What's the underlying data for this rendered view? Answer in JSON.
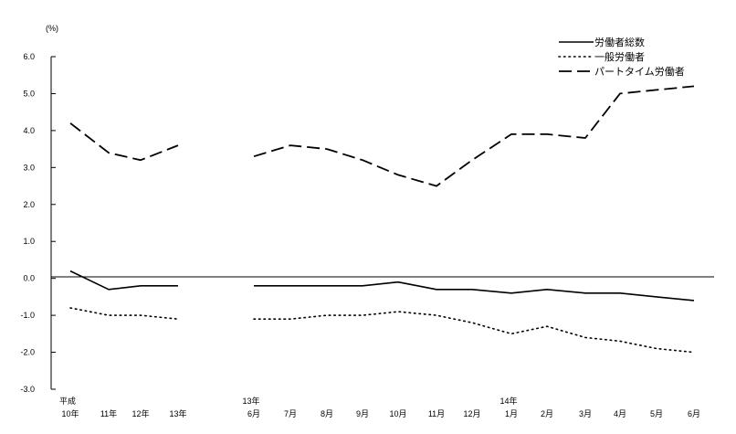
{
  "chart_data": {
    "type": "line",
    "unit_label": "(%)",
    "ylim": [
      -3.0,
      6.0
    ],
    "ytick_labels": [
      "6.0",
      "5.0",
      "4.0",
      "3.0",
      "2.0",
      "1.0",
      "0.0",
      "-1.0",
      "-2.0",
      "-3.0"
    ],
    "legend_position": "top-right",
    "grid": false,
    "categories": [
      {
        "top": "平成",
        "bottom": "10年"
      },
      {
        "top": "",
        "bottom": "11年"
      },
      {
        "top": "",
        "bottom": "12年"
      },
      {
        "top": "",
        "bottom": "13年"
      },
      {
        "top": "13年",
        "bottom": "6月"
      },
      {
        "top": "",
        "bottom": "7月"
      },
      {
        "top": "",
        "bottom": "8月"
      },
      {
        "top": "",
        "bottom": "9月"
      },
      {
        "top": "",
        "bottom": "10月"
      },
      {
        "top": "",
        "bottom": "11月"
      },
      {
        "top": "",
        "bottom": "12月"
      },
      {
        "top": "14年",
        "bottom": "1月"
      },
      {
        "top": "",
        "bottom": "2月"
      },
      {
        "top": "",
        "bottom": "3月"
      },
      {
        "top": "",
        "bottom": "4月"
      },
      {
        "top": "",
        "bottom": "5月"
      },
      {
        "top": "",
        "bottom": "6月"
      }
    ],
    "series": [
      {
        "name": "労働者総数",
        "style": "solid",
        "values": [
          0.2,
          -0.3,
          -0.2,
          -0.2,
          -0.2,
          -0.2,
          -0.2,
          -0.2,
          -0.1,
          -0.3,
          -0.3,
          -0.4,
          -0.3,
          -0.4,
          -0.4,
          -0.5,
          -0.6
        ]
      },
      {
        "name": "一般労働者",
        "style": "dotted",
        "values": [
          -0.8,
          -1.0,
          -1.0,
          -1.1,
          -1.1,
          -1.1,
          -1.0,
          -1.0,
          -0.9,
          -1.0,
          -1.2,
          -1.5,
          -1.3,
          -1.6,
          -1.7,
          -1.9,
          -2.0
        ]
      },
      {
        "name": "パートタイム労働者",
        "style": "dashed",
        "values": [
          4.2,
          3.4,
          3.2,
          3.6,
          3.3,
          3.6,
          3.5,
          3.2,
          2.8,
          2.5,
          3.2,
          3.9,
          3.9,
          3.8,
          5.0,
          5.1,
          5.2
        ]
      }
    ],
    "segments": [
      [
        0,
        3
      ],
      [
        4,
        16
      ]
    ]
  }
}
